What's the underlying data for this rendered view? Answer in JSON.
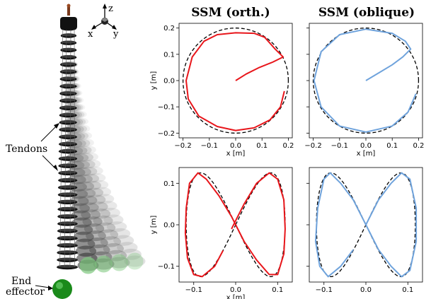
{
  "figure": {
    "column_titles": [
      "SSM (orth.)",
      "SSM (oblique)"
    ],
    "illustration": {
      "tendons_label": "Tendons",
      "end_effector_label_line1": "End",
      "end_effector_label_line2": "effector",
      "frame_axes": [
        "z",
        "x",
        "y"
      ]
    },
    "colors": {
      "orth": "#e8161b",
      "oblique": "#6fa3dc",
      "reference": "#000000",
      "effector": "#1a8a1a"
    }
  },
  "chart_data": [
    {
      "type": "line",
      "name": "circle-orth",
      "xlabel": "x [m]",
      "ylabel": "y [m]",
      "xlim": [
        -0.215,
        0.215
      ],
      "ylim": [
        -0.218,
        0.218
      ],
      "xticks": [
        -0.2,
        -0.1,
        0.0,
        0.1,
        0.2
      ],
      "xtick_labels": [
        "−0.2",
        "−0.1",
        "0.0",
        "0.1",
        "0.2"
      ],
      "yticks": [
        -0.2,
        -0.1,
        0.0,
        0.1,
        0.2
      ],
      "ytick_labels": [
        "−0.2",
        "−0.1",
        "0.0",
        "0.1",
        "0.2"
      ],
      "series": [
        {
          "role": "reference",
          "style": "dashed",
          "shape": "circle",
          "radius": 0.2
        },
        {
          "role": "tracked",
          "points": [
            [
              0.0,
              0.0
            ],
            [
              0.04,
              0.025
            ],
            [
              0.09,
              0.05
            ],
            [
              0.14,
              0.07
            ],
            [
              0.18,
              0.09
            ],
            [
              0.15,
              0.12
            ],
            [
              0.11,
              0.165
            ],
            [
              0.07,
              0.18
            ],
            [
              0.0,
              0.182
            ],
            [
              -0.07,
              0.175
            ],
            [
              -0.12,
              0.15
            ],
            [
              -0.165,
              0.09
            ],
            [
              -0.188,
              0.0
            ],
            [
              -0.18,
              -0.07
            ],
            [
              -0.14,
              -0.135
            ],
            [
              -0.07,
              -0.175
            ],
            [
              0.0,
              -0.19
            ],
            [
              0.07,
              -0.18
            ],
            [
              0.13,
              -0.15
            ],
            [
              0.17,
              -0.1
            ],
            [
              0.185,
              -0.04
            ]
          ]
        }
      ]
    },
    {
      "type": "line",
      "name": "circle-oblique",
      "xlabel": "x [m]",
      "ylabel": "",
      "xlim": [
        -0.215,
        0.215
      ],
      "ylim": [
        -0.218,
        0.218
      ],
      "xticks": [
        -0.2,
        -0.1,
        0.0,
        0.1,
        0.2
      ],
      "xtick_labels": [
        "−0.2",
        "−0.1",
        "0.0",
        "0.1",
        "0.2"
      ],
      "yticks": [],
      "ytick_labels": [],
      "series": [
        {
          "role": "reference",
          "style": "dashed",
          "shape": "circle",
          "radius": 0.2
        },
        {
          "role": "tracked",
          "points": [
            [
              0.0,
              0.0
            ],
            [
              0.05,
              0.03
            ],
            [
              0.1,
              0.06
            ],
            [
              0.14,
              0.09
            ],
            [
              0.17,
              0.12
            ],
            [
              0.15,
              0.15
            ],
            [
              0.1,
              0.18
            ],
            [
              0.0,
              0.196
            ],
            [
              -0.1,
              0.175
            ],
            [
              -0.17,
              0.11
            ],
            [
              -0.197,
              0.0
            ],
            [
              -0.17,
              -0.1
            ],
            [
              -0.1,
              -0.173
            ],
            [
              0.0,
              -0.196
            ],
            [
              0.1,
              -0.173
            ],
            [
              0.16,
              -0.12
            ],
            [
              0.19,
              -0.05
            ]
          ]
        }
      ]
    },
    {
      "type": "line",
      "name": "figure8-orth",
      "xlabel": "x [m]",
      "ylabel": "y [m]",
      "xlim": [
        -0.135,
        0.135
      ],
      "ylim": [
        -0.138,
        0.138
      ],
      "xticks": [
        -0.1,
        0.0,
        0.1
      ],
      "xtick_labels": [
        "−0.1",
        "0.0",
        "0.1"
      ],
      "yticks": [
        -0.1,
        0.0,
        0.1
      ],
      "ytick_labels": [
        "−0.1",
        "0.0",
        "0.1"
      ],
      "series": [
        {
          "role": "reference",
          "style": "dashed",
          "shape": "lemniscate",
          "amplitude": 0.125
        },
        {
          "role": "tracked",
          "points": [
            [
              -0.03,
              -0.062
            ],
            [
              -0.05,
              -0.1
            ],
            [
              -0.08,
              -0.125
            ],
            [
              -0.1,
              -0.12
            ],
            [
              -0.115,
              -0.08
            ],
            [
              -0.12,
              -0.02
            ],
            [
              -0.118,
              0.04
            ],
            [
              -0.11,
              0.1
            ],
            [
              -0.09,
              0.125
            ],
            [
              -0.07,
              0.11
            ],
            [
              -0.04,
              0.07
            ],
            [
              -0.01,
              0.02
            ],
            [
              0.02,
              -0.04
            ],
            [
              0.05,
              -0.085
            ],
            [
              0.08,
              -0.12
            ],
            [
              0.1,
              -0.12
            ],
            [
              0.115,
              -0.07
            ],
            [
              0.118,
              -0.01
            ],
            [
              0.115,
              0.06
            ],
            [
              0.1,
              0.11
            ],
            [
              0.08,
              0.125
            ],
            [
              0.05,
              0.1
            ],
            [
              0.02,
              0.05
            ],
            [
              0.0,
              0.01
            ],
            [
              -0.01,
              -0.01
            ]
          ]
        }
      ]
    },
    {
      "type": "line",
      "name": "figure8-oblique",
      "xlabel": "",
      "ylabel": "",
      "xlim": [
        -0.135,
        0.135
      ],
      "ylim": [
        -0.138,
        0.138
      ],
      "xticks": [
        -0.1,
        0.0,
        0.1
      ],
      "xtick_labels": [
        "−0.1",
        "0.0",
        "0.1"
      ],
      "yticks": [],
      "ytick_labels": [],
      "series": [
        {
          "role": "reference",
          "style": "dashed",
          "shape": "lemniscate",
          "amplitude": 0.125
        },
        {
          "role": "tracked",
          "points": [
            [
              -0.03,
              -0.06
            ],
            [
              -0.06,
              -0.1
            ],
            [
              -0.09,
              -0.125
            ],
            [
              -0.11,
              -0.1
            ],
            [
              -0.12,
              -0.04
            ],
            [
              -0.115,
              0.04
            ],
            [
              -0.1,
              0.11
            ],
            [
              -0.085,
              0.125
            ],
            [
              -0.06,
              0.1
            ],
            [
              -0.03,
              0.06
            ],
            [
              0.0,
              0.0
            ],
            [
              0.03,
              -0.06
            ],
            [
              0.06,
              -0.1
            ],
            [
              0.085,
              -0.125
            ],
            [
              0.105,
              -0.11
            ],
            [
              0.12,
              -0.04
            ],
            [
              0.12,
              0.04
            ],
            [
              0.105,
              0.11
            ],
            [
              0.085,
              0.125
            ],
            [
              0.06,
              0.1
            ],
            [
              0.03,
              0.06
            ],
            [
              0.0,
              0.0
            ]
          ]
        }
      ]
    }
  ]
}
